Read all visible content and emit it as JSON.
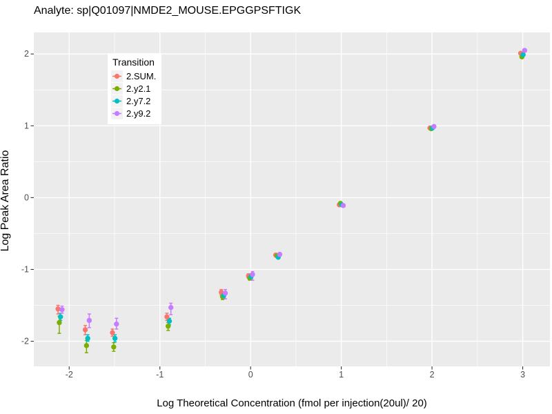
{
  "chart_data": {
    "type": "scatter",
    "title": "Analyte: sp|Q01097|NMDE2_MOUSE.EPGGPSFTIGK",
    "xlabel": "Log Theoretical Concentration (fmol per injection(20ul)/ 20)",
    "ylabel": "Log Peak Area Ratio",
    "legend_title": "Transition",
    "legend_position": "inside-top-left",
    "panel_bg": "#EBEBEB",
    "grid_color": "#FFFFFF",
    "tick_color": "#333333",
    "tick_label_color": "#4D4D4D",
    "grid": "major-and-minor",
    "xlim": [
      -2.39,
      3.3
    ],
    "ylim": [
      -2.35,
      2.3
    ],
    "x_ticks": [
      -2,
      -1,
      0,
      1,
      2,
      3
    ],
    "y_ticks": [
      -2,
      -1,
      0,
      1,
      2
    ],
    "x": [
      -2.1,
      -1.8,
      -1.5,
      -0.9,
      -0.3,
      0,
      0.3,
      1,
      2,
      3
    ],
    "series": [
      {
        "name": "2.SUM.",
        "color": "#F8766D",
        "y": [
          -1.55,
          -1.84,
          -1.88,
          -1.66,
          -1.32,
          -1.09,
          -0.8,
          -0.1,
          0.97,
          2.01
        ],
        "ymin": [
          -1.62,
          -1.91,
          -1.93,
          -1.71,
          -1.36,
          -1.12,
          -0.82,
          -0.11,
          0.96,
          2.0
        ],
        "ymax": [
          -1.5,
          -1.78,
          -1.83,
          -1.61,
          -1.28,
          -1.06,
          -0.78,
          -0.09,
          0.98,
          2.02
        ]
      },
      {
        "name": "2.y2.1",
        "color": "#7CAE00",
        "y": [
          -1.74,
          -2.06,
          -2.08,
          -1.79,
          -1.38,
          -1.12,
          -0.81,
          -0.08,
          0.96,
          1.96
        ],
        "ymin": [
          -1.89,
          -2.16,
          -2.14,
          -1.85,
          -1.42,
          -1.15,
          -0.83,
          -0.09,
          0.95,
          1.95
        ],
        "ymax": [
          -1.65,
          -1.99,
          -2.02,
          -1.74,
          -1.34,
          -1.09,
          -0.79,
          -0.07,
          0.97,
          1.97
        ]
      },
      {
        "name": "2.y7.2",
        "color": "#00BFC4",
        "y": [
          -1.66,
          -1.96,
          -1.96,
          -1.72,
          -1.36,
          -1.1,
          -0.83,
          -0.1,
          0.97,
          1.99
        ],
        "ymin": [
          -1.71,
          -2.0,
          -2.01,
          -1.77,
          -1.4,
          -1.13,
          -0.85,
          -0.11,
          0.96,
          1.98
        ],
        "ymax": [
          -1.61,
          -1.91,
          -1.91,
          -1.68,
          -1.32,
          -1.07,
          -0.81,
          -0.09,
          0.98,
          2.0
        ]
      },
      {
        "name": "2.y9.2",
        "color": "#C77CFF",
        "y": [
          -1.56,
          -1.71,
          -1.76,
          -1.53,
          -1.33,
          -1.07,
          -0.79,
          -0.11,
          0.99,
          2.05
        ],
        "ymin": [
          -1.61,
          -1.81,
          -1.83,
          -1.63,
          -1.41,
          -1.15,
          -0.81,
          -0.12,
          0.98,
          2.03
        ],
        "ymax": [
          -1.51,
          -1.62,
          -1.68,
          -1.47,
          -1.28,
          -1.03,
          -0.77,
          -0.1,
          1.0,
          2.07
        ]
      }
    ]
  }
}
